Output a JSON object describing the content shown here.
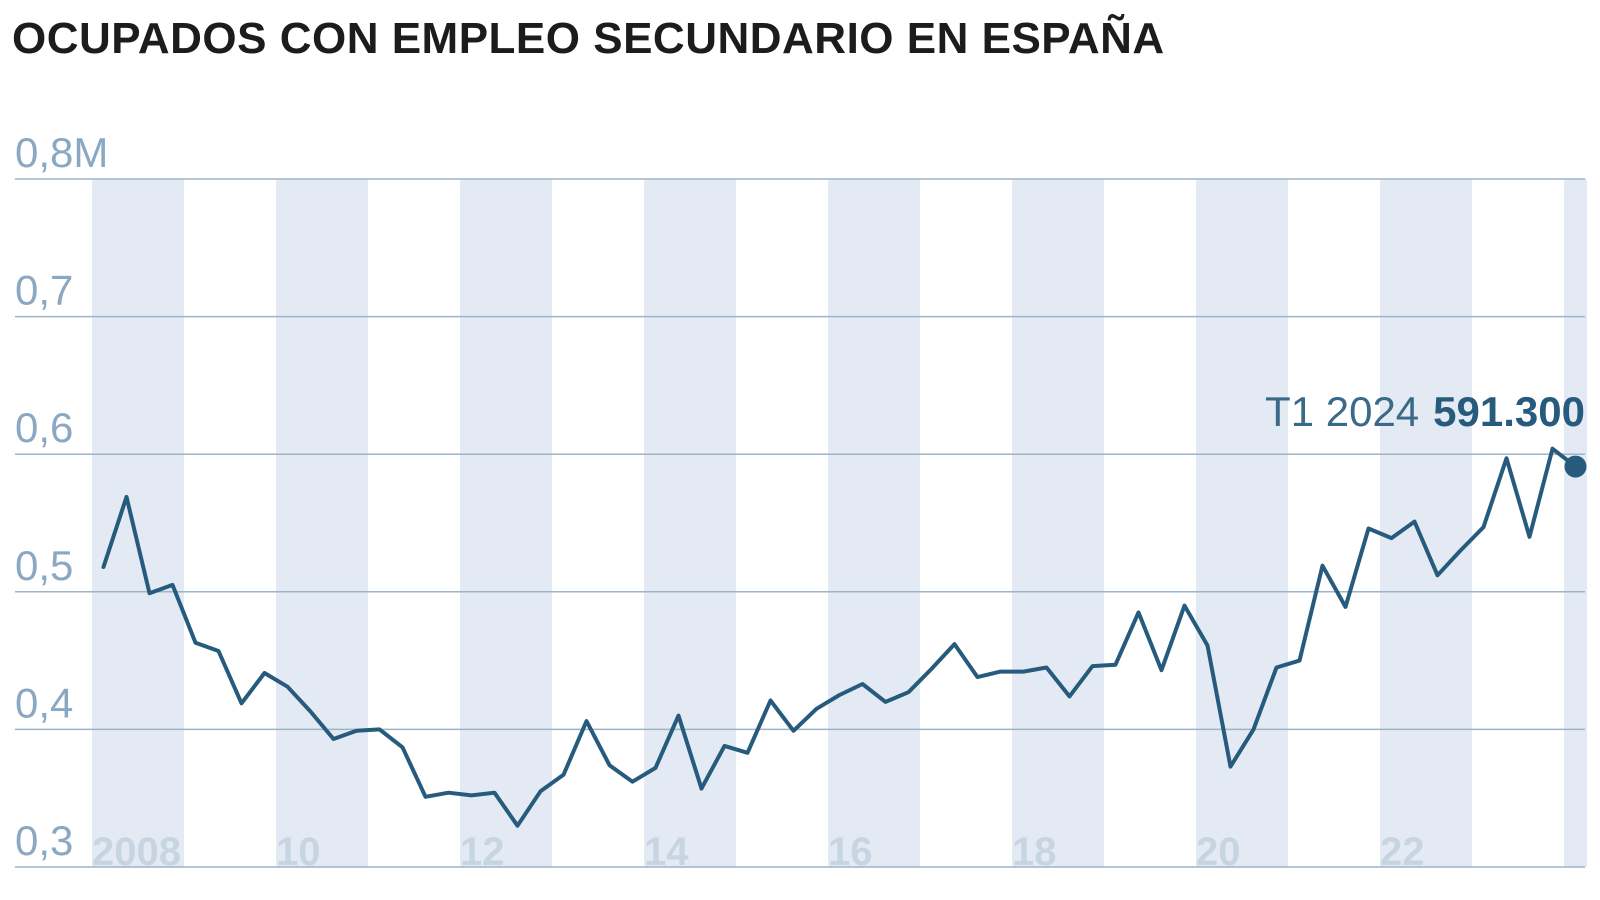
{
  "title": "OCUPADOS CON EMPLEO SECUNDARIO EN ESPAÑA",
  "colors": {
    "line": "#275b7d",
    "band": "#e3eaf3",
    "grid": "#9db3c8",
    "ytick": "#8ba8c2",
    "xtick": "#c7d5e3",
    "annot_label": "#3a6a8a",
    "annot_value": "#275b7d",
    "title": "#1c1c1c"
  },
  "chart_data": {
    "type": "line",
    "title": "OCUPADOS CON EMPLEO SECUNDARIO EN ESPAÑA",
    "xlabel": "",
    "ylabel": "",
    "ylim": [
      0.3,
      0.8
    ],
    "xlim": [
      2007.25,
      2024.25
    ],
    "y_ticks": [
      {
        "value": 0.8,
        "label": "0,8M"
      },
      {
        "value": 0.7,
        "label": "0,7"
      },
      {
        "value": 0.6,
        "label": "0,6"
      },
      {
        "value": 0.5,
        "label": "0,5"
      },
      {
        "value": 0.4,
        "label": "0,4"
      },
      {
        "value": 0.3,
        "label": "0,3"
      }
    ],
    "x_ticks": [
      {
        "value": 2008,
        "label": "2008"
      },
      {
        "value": 2010,
        "label": "10"
      },
      {
        "value": 2012,
        "label": "12"
      },
      {
        "value": 2014,
        "label": "14"
      },
      {
        "value": 2016,
        "label": "16"
      },
      {
        "value": 2018,
        "label": "18"
      },
      {
        "value": 2020,
        "label": "20"
      },
      {
        "value": 2022,
        "label": "22"
      }
    ],
    "shaded_years": [
      2008,
      2010,
      2012,
      2014,
      2016,
      2018,
      2020,
      2022,
      2024
    ],
    "grid": true,
    "series": [
      {
        "quarter_labels": [
          "T1 2008",
          "T2 2008",
          "T3 2008",
          "T4 2008",
          "T1 2009",
          "T2 2009",
          "T3 2009",
          "T4 2009",
          "T1 2010",
          "T2 2010",
          "T3 2010",
          "T4 2010",
          "T1 2011",
          "T2 2011",
          "T3 2011",
          "T4 2011",
          "T1 2012",
          "T2 2012",
          "T3 2012",
          "T4 2012",
          "T1 2013",
          "T2 2013",
          "T3 2013",
          "T4 2013",
          "T1 2014",
          "T2 2014",
          "T3 2014",
          "T4 2014",
          "T1 2015",
          "T2 2015",
          "T3 2015",
          "T4 2015",
          "T1 2016",
          "T2 2016",
          "T3 2016",
          "T4 2016",
          "T1 2017",
          "T2 2017",
          "T3 2017",
          "T4 2017",
          "T1 2018",
          "T2 2018",
          "T3 2018",
          "T4 2018",
          "T1 2019",
          "T2 2019",
          "T3 2019",
          "T4 2019",
          "T1 2020",
          "T2 2020",
          "T3 2020",
          "T4 2020",
          "T1 2021",
          "T2 2021",
          "T3 2021",
          "T4 2021",
          "T1 2022",
          "T2 2022",
          "T3 2022",
          "T4 2022",
          "T1 2023",
          "T2 2023",
          "T3 2023",
          "T4 2023",
          "T1 2024"
        ],
        "values": [
          0.518,
          0.569,
          0.499,
          0.505,
          0.463,
          0.457,
          0.419,
          0.441,
          0.431,
          0.413,
          0.393,
          0.399,
          0.4,
          0.387,
          0.351,
          0.354,
          0.352,
          0.354,
          0.33,
          0.355,
          0.367,
          0.406,
          0.374,
          0.362,
          0.372,
          0.41,
          0.357,
          0.388,
          0.383,
          0.421,
          0.399,
          0.415,
          0.425,
          0.433,
          0.42,
          0.427,
          0.444,
          0.462,
          0.438,
          0.442,
          0.442,
          0.445,
          0.424,
          0.446,
          0.447,
          0.485,
          0.443,
          0.49,
          0.461,
          0.373,
          0.4,
          0.445,
          0.45,
          0.519,
          0.489,
          0.546,
          0.539,
          0.551,
          0.512,
          0.53,
          0.547,
          0.597,
          0.54,
          0.604,
          0.591
        ]
      }
    ],
    "annotation": {
      "label": "T1 2024",
      "value": "591.300"
    }
  }
}
